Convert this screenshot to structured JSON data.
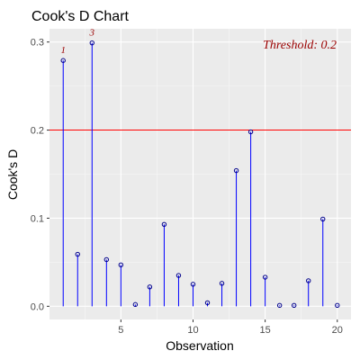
{
  "chart_data": {
    "type": "scatter",
    "style": "lollipop",
    "title": "Cook's D Chart",
    "xlabel": "Observation",
    "ylabel": "Cook's D",
    "xlim": [
      0.05,
      20.95
    ],
    "ylim": [
      -0.015,
      0.315
    ],
    "x_ticks": [
      5,
      10,
      15,
      20
    ],
    "y_ticks": [
      0.0,
      0.1,
      0.2,
      0.3
    ],
    "y_tick_labels": [
      "0.0",
      "0.1",
      "0.2",
      "0.3"
    ],
    "grid": true,
    "threshold": 0.2,
    "threshold_label": "Threshold: 0.2",
    "series": [
      {
        "x": [
          1,
          2,
          3,
          4,
          5,
          6,
          7,
          8,
          9,
          10,
          11,
          12,
          13,
          14,
          15,
          16,
          17,
          18,
          19,
          20
        ],
        "values": [
          0.279,
          0.059,
          0.299,
          0.053,
          0.047,
          0.002,
          0.022,
          0.093,
          0.035,
          0.025,
          0.004,
          0.026,
          0.154,
          0.198,
          0.033,
          0.001,
          0.001,
          0.029,
          0.099,
          0.001
        ]
      }
    ],
    "point_labels": [
      {
        "x": 1,
        "label": "1"
      },
      {
        "x": 3,
        "label": "3"
      }
    ],
    "colors": {
      "panel": "#ebebeb",
      "grid_major": "#ffffff",
      "grid_minor": "#f7f7f7",
      "stem": "#0000ff",
      "point": "#00008b",
      "threshold_line": "#ff0000",
      "annotation": "#9b0000"
    }
  }
}
